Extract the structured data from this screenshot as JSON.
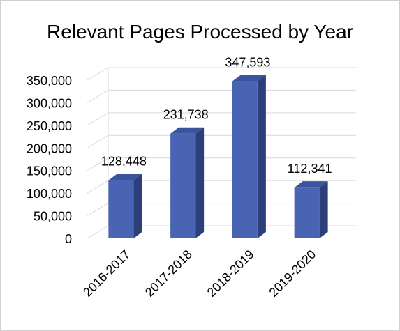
{
  "chart_data": {
    "type": "bar",
    "title": "Relevant Pages Processed by Year",
    "categories": [
      "2016-2017",
      "2017-2018",
      "2018-2019",
      "2019-2020"
    ],
    "values": [
      128448,
      231738,
      347593,
      112341
    ],
    "value_labels": [
      "128,448",
      "231,738",
      "347,593",
      "112,341"
    ],
    "ylim": [
      0,
      350000
    ],
    "yticks": [
      0,
      50000,
      100000,
      150000,
      200000,
      250000,
      300000,
      350000
    ],
    "ytick_labels": [
      "0",
      "50,000",
      "100,000",
      "150,000",
      "200,000",
      "250,000",
      "300,000",
      "350,000"
    ],
    "grid": true,
    "legend": "none",
    "colors": {
      "bar_front": "#4a64b4",
      "bar_side": "#2c3f7a",
      "bar_top": "#3a54a0",
      "grid": "#d9d9d9"
    }
  }
}
